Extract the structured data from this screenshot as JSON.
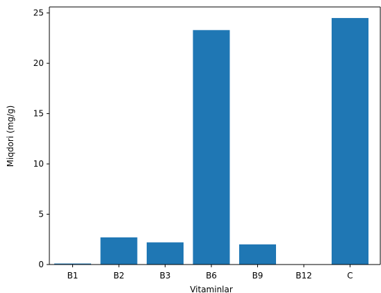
{
  "chart_data": {
    "type": "bar",
    "categories": [
      "B1",
      "B2",
      "B3",
      "B6",
      "B9",
      "B12",
      "C"
    ],
    "values": [
      0.1,
      2.7,
      2.2,
      23.3,
      2.0,
      0.0,
      24.5
    ],
    "xlabel": "Vitaminlar",
    "ylabel": "Miqdori (mg/g)",
    "ylim": [
      0,
      25.6
    ],
    "yticks": [
      0,
      5,
      10,
      15,
      20,
      25
    ],
    "bar_color": "#1f77b4",
    "grid": false
  }
}
